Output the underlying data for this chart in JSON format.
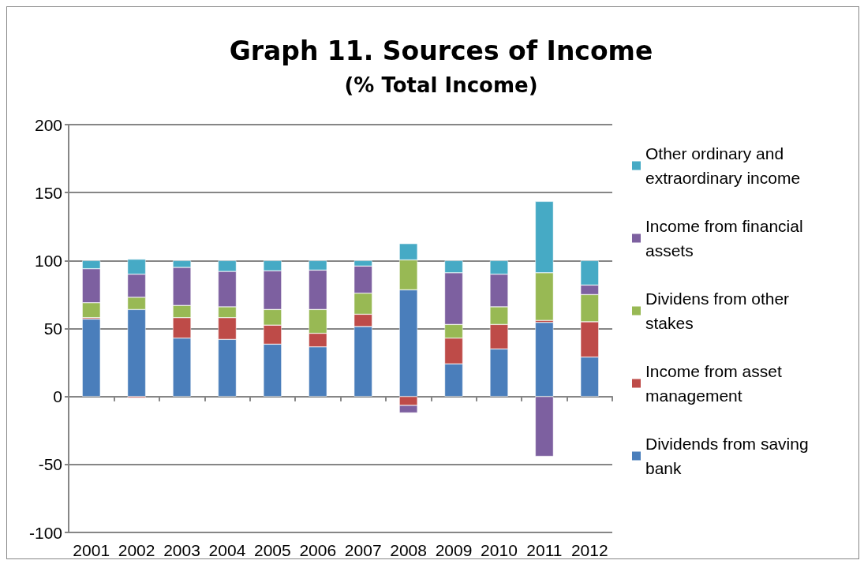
{
  "chart_data": {
    "type": "bar",
    "title": "Graph 11. Sources of Income",
    "subtitle": "(% Total Income)",
    "categories": [
      "2001",
      "2002",
      "2003",
      "2004",
      "2005",
      "2006",
      "2007",
      "2008",
      "2009",
      "2010",
      "2011",
      "2012"
    ],
    "stacked": true,
    "ylim": [
      -100,
      200
    ],
    "yticks": [
      -100,
      -50,
      0,
      50,
      100,
      150,
      200
    ],
    "grid": "y",
    "legend": "right",
    "series": [
      {
        "name": "Dividends from saving bank",
        "color": "#4a7ebb",
        "values": [
          57,
          64,
          43,
          42,
          38.5,
          36.5,
          51.5,
          78.5,
          24,
          35,
          54.5,
          29
        ]
      },
      {
        "name": "Income from asset management",
        "color": "#be4b48",
        "values": [
          1,
          -1,
          15,
          16,
          14,
          10,
          9,
          -6.5,
          19,
          18,
          1.5,
          26
        ]
      },
      {
        "name": "Dividens from other stakes",
        "color": "#98b954",
        "values": [
          11,
          9,
          9,
          8,
          11.5,
          17.5,
          15.5,
          22,
          10,
          13,
          35,
          20
        ]
      },
      {
        "name": "Income from financial assets",
        "color": "#7d60a0",
        "values": [
          25,
          17,
          28,
          26,
          28.5,
          29,
          20,
          -5.5,
          38,
          24,
          -44,
          7
        ]
      },
      {
        "name": "Other ordinary and extraordinary income",
        "color": "#46aac5",
        "values": [
          6,
          11,
          5,
          8,
          7.5,
          7,
          4,
          12,
          9,
          10,
          52.5,
          18
        ]
      }
    ]
  }
}
